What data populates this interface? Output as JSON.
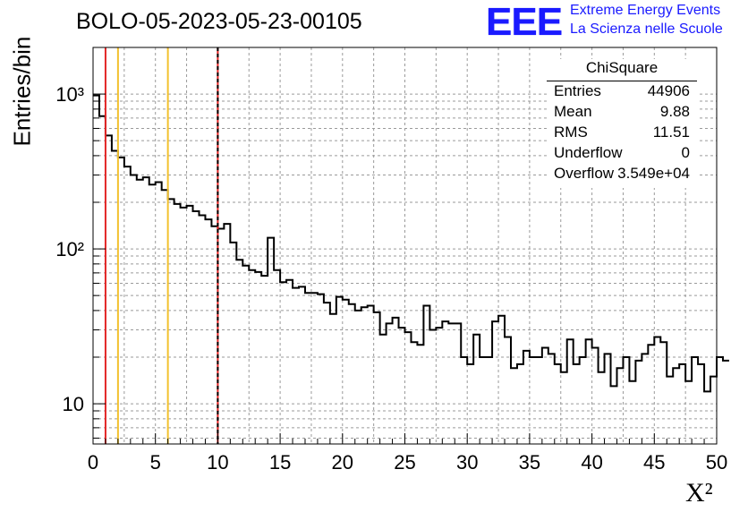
{
  "page": {
    "title": "BOLO-05-2023-05-23-00105",
    "logo": "EEE",
    "logo_line1": "Extreme Energy Events",
    "logo_line2": "La Scienza nelle Scuole"
  },
  "stats_box": {
    "title": "ChiSquare",
    "rows": [
      {
        "key": "Entries",
        "value": "44906"
      },
      {
        "key": "Mean",
        "value": "9.88"
      },
      {
        "key": "RMS",
        "value": "11.51"
      },
      {
        "key": "Underflow",
        "value": "0"
      },
      {
        "key": "Overflow",
        "value": "3.549e+04"
      }
    ]
  },
  "chart_data": {
    "type": "histogram",
    "ylabel": "Entries/bin",
    "xlabel": "X²",
    "xlim": [
      0,
      50
    ],
    "ylim": [
      5.5,
      2000
    ],
    "yscale": "log",
    "grid": true,
    "legend": "top-right",
    "x_ticks": [
      "0",
      "5",
      "10",
      "15",
      "20",
      "25",
      "30",
      "35",
      "40",
      "45",
      "50"
    ],
    "y_ticks": [
      {
        "value": 10,
        "label": "10"
      },
      {
        "value": 100,
        "label": "10²"
      },
      {
        "value": 1000,
        "label": "10³"
      }
    ],
    "bin_width": 0.5,
    "counts": [
      980,
      720,
      540,
      430,
      390,
      340,
      300,
      280,
      290,
      260,
      270,
      240,
      210,
      195,
      185,
      190,
      175,
      165,
      155,
      140,
      135,
      145,
      110,
      85,
      78,
      73,
      71,
      67,
      118,
      73,
      61,
      63,
      56,
      57,
      52,
      52,
      51,
      45,
      38,
      49,
      47,
      44,
      40,
      42,
      43,
      39,
      28,
      33,
      36,
      31,
      29,
      25,
      24,
      43,
      30,
      31,
      34,
      33,
      33,
      20,
      18,
      28,
      20,
      20,
      34,
      37,
      27,
      17,
      18,
      22,
      20,
      20,
      23,
      21,
      18,
      16,
      26,
      18,
      20,
      26,
      23,
      16,
      21,
      13,
      17,
      20,
      14,
      19,
      21,
      24,
      27,
      25,
      15,
      17,
      18,
      14,
      20,
      18,
      12,
      15,
      20,
      19
    ],
    "vertical_lines": [
      {
        "x": 1,
        "color": "#e32626",
        "style": "solid"
      },
      {
        "x": 2,
        "color": "#f2c12e",
        "style": "solid"
      },
      {
        "x": 6,
        "color": "#f2c12e",
        "style": "solid"
      },
      {
        "x": 10,
        "color": "#e32626",
        "style": "solid"
      },
      {
        "x": 10,
        "color": "#000000",
        "style": "dashed"
      }
    ]
  }
}
